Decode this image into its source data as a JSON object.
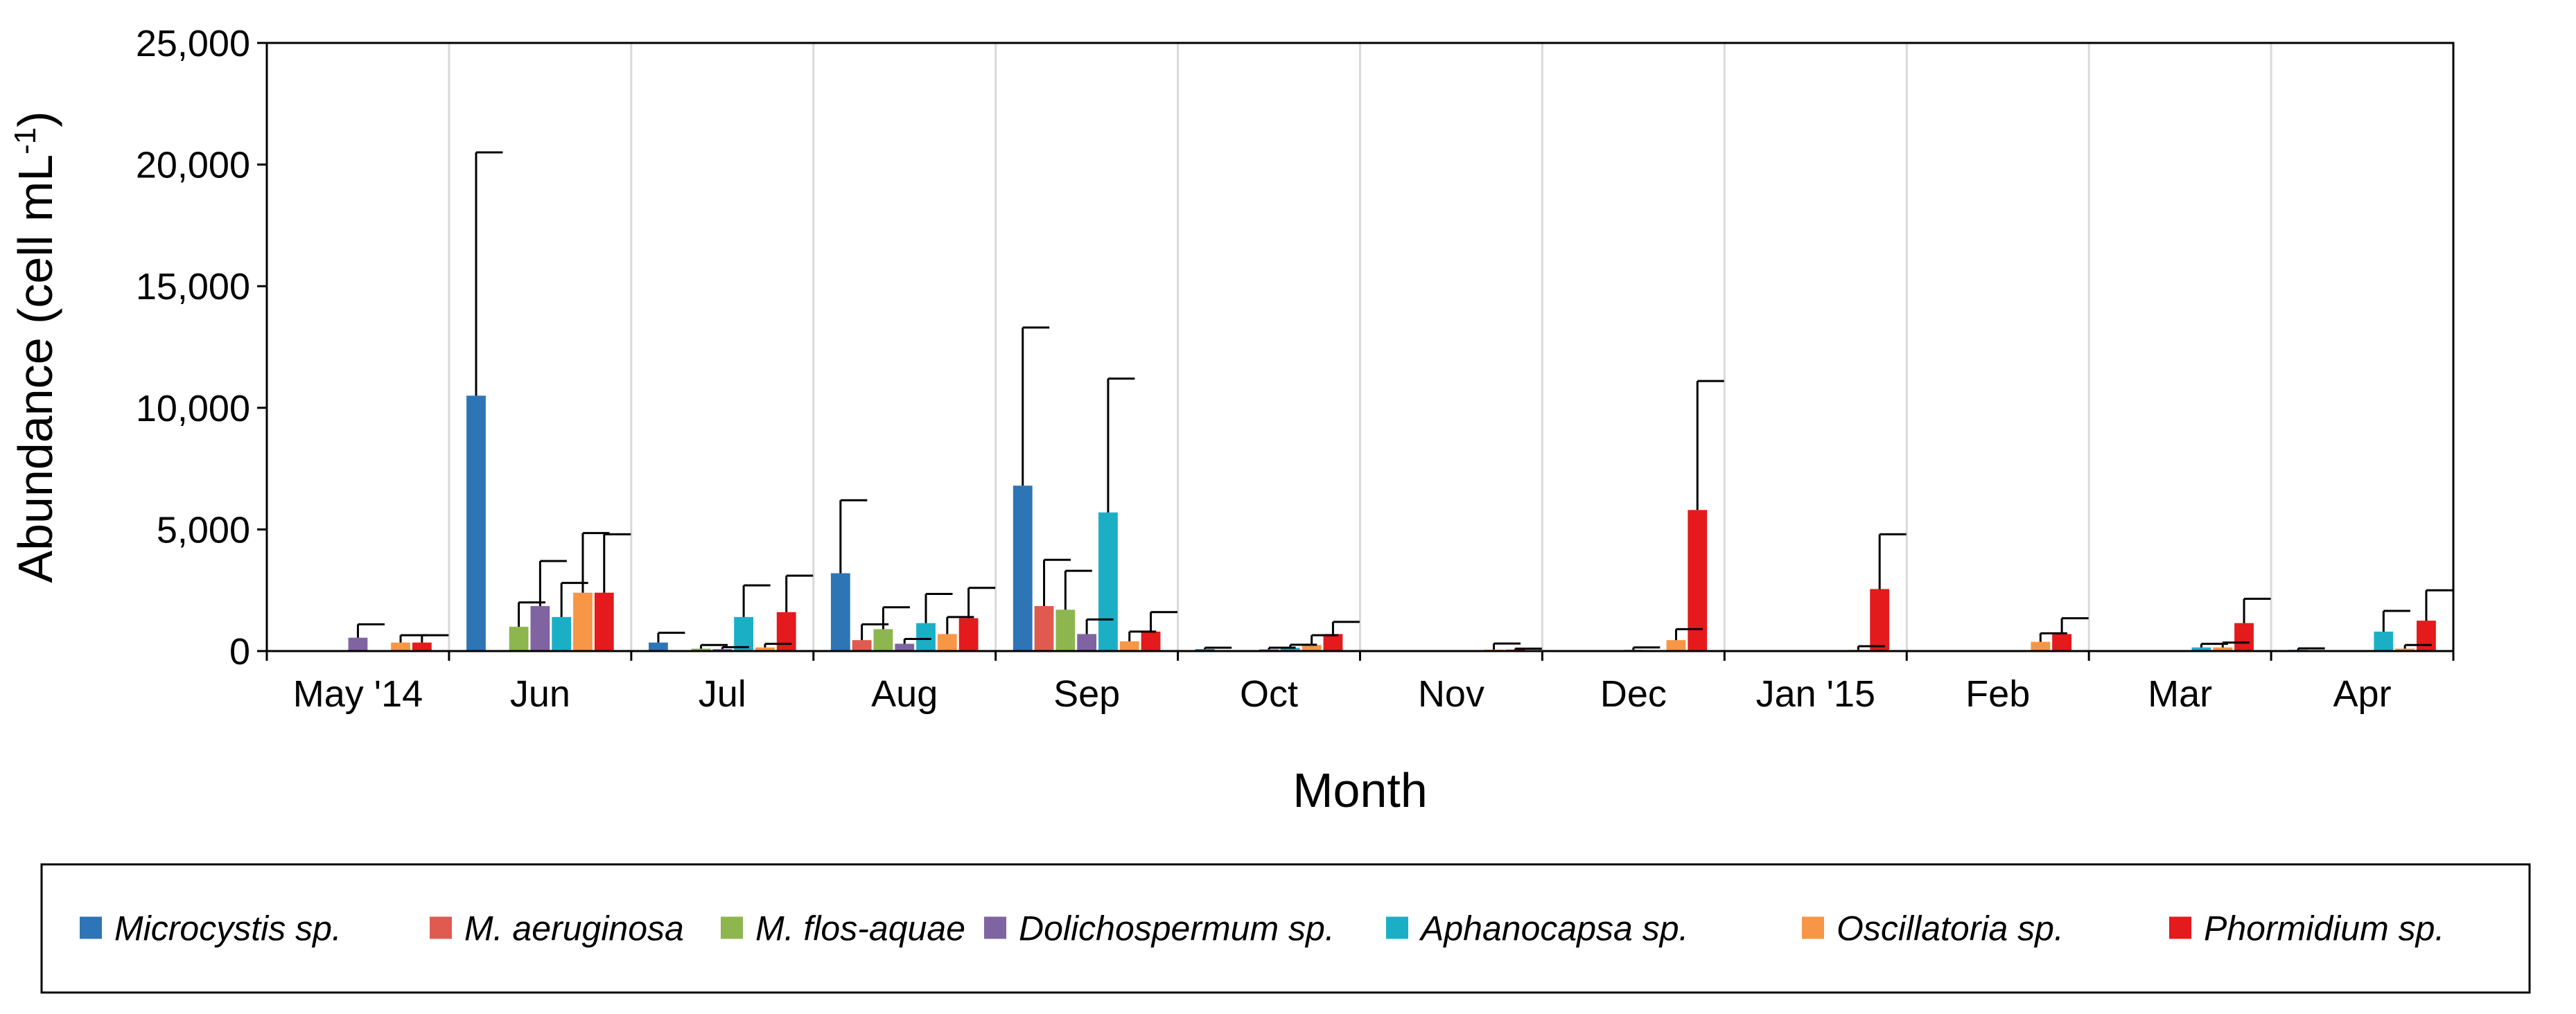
{
  "chart_data": {
    "type": "bar",
    "title": "",
    "xlabel": "Month",
    "ylabel": "Abundance (cell mL",
    "ylabel_sup": "-1",
    "ylabel_close": ")",
    "ylim": [
      0,
      25000
    ],
    "yticks": [
      0,
      5000,
      10000,
      15000,
      20000,
      25000
    ],
    "ytick_labels": [
      "0",
      "5,000",
      "10,000",
      "15,000",
      "20,000",
      "25,000"
    ],
    "grid": "vertical",
    "legend_position": "bottom",
    "error_bars": true,
    "categories": [
      "May '14",
      "Jun",
      "Jul",
      "Aug",
      "Sep",
      "Oct",
      "Nov",
      "Dec",
      "Jan '15",
      "Feb",
      "Mar",
      "Apr"
    ],
    "series": [
      {
        "name": "Microcystis sp.",
        "color": "#2E75B6",
        "values": [
          0,
          10500,
          350,
          3200,
          6800,
          80,
          0,
          0,
          0,
          0,
          0,
          50
        ],
        "errors": [
          0,
          10000,
          400,
          3000,
          6500,
          60,
          0,
          0,
          0,
          0,
          0,
          60
        ]
      },
      {
        "name": "M. aeruginosa",
        "color": "#E05A4F",
        "values": [
          0,
          0,
          0,
          450,
          1850,
          0,
          0,
          0,
          0,
          0,
          0,
          0
        ],
        "errors": [
          0,
          0,
          0,
          650,
          1900,
          0,
          0,
          0,
          0,
          0,
          0,
          0
        ]
      },
      {
        "name": "M. flos-aquae",
        "color": "#8DB64E",
        "values": [
          0,
          1000,
          100,
          900,
          1700,
          0,
          0,
          0,
          0,
          0,
          0,
          0
        ],
        "errors": [
          0,
          1000,
          150,
          900,
          1600,
          0,
          0,
          0,
          0,
          0,
          0,
          0
        ]
      },
      {
        "name": "Dolichospermum sp.",
        "color": "#8064A2",
        "values": [
          550,
          1850,
          80,
          300,
          700,
          70,
          0,
          50,
          0,
          0,
          0,
          0
        ],
        "errors": [
          550,
          1850,
          80,
          200,
          600,
          70,
          0,
          100,
          0,
          0,
          0,
          0
        ]
      },
      {
        "name": "Aphanocapsa sp.",
        "color": "#1BAFC6",
        "values": [
          0,
          1400,
          1400,
          1150,
          5700,
          130,
          0,
          0,
          0,
          0,
          150,
          800
        ],
        "errors": [
          0,
          1400,
          1300,
          1200,
          5500,
          130,
          0,
          0,
          0,
          0,
          150,
          850
        ]
      },
      {
        "name": "Oscillatoria sp.",
        "color": "#F79646",
        "values": [
          350,
          2400,
          150,
          700,
          400,
          250,
          60,
          450,
          50,
          380,
          150,
          100
        ],
        "errors": [
          300,
          2450,
          150,
          700,
          400,
          400,
          250,
          450,
          150,
          350,
          200,
          150
        ]
      },
      {
        "name": "Phormidium sp.",
        "color": "#E41A1C",
        "values": [
          350,
          2400,
          1600,
          1350,
          800,
          700,
          60,
          5800,
          2550,
          700,
          1150,
          1250
        ],
        "errors": [
          300,
          2400,
          1500,
          1250,
          800,
          500,
          40,
          5300,
          2250,
          650,
          1000,
          1250
        ]
      }
    ]
  }
}
